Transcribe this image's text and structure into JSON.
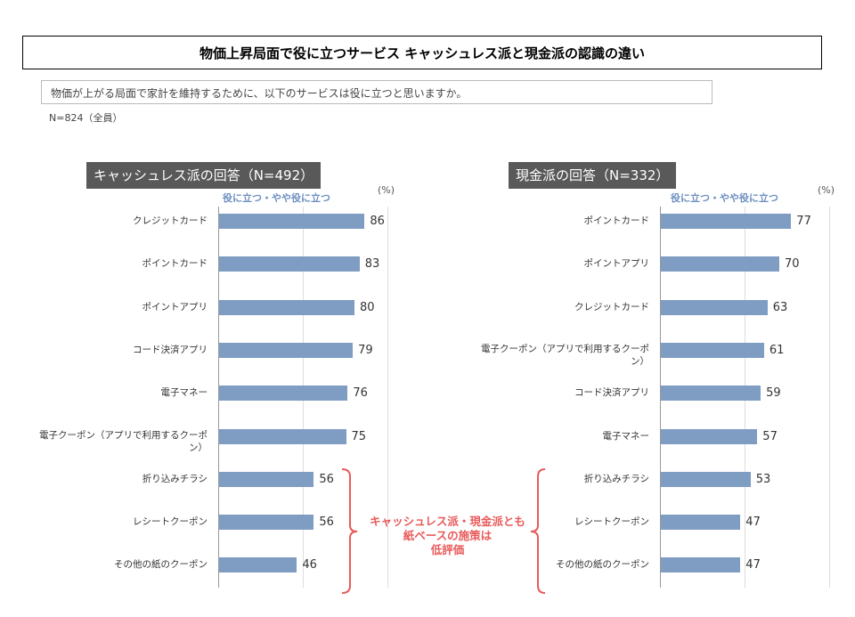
{
  "title": "物価上昇局面で役に立つサービス キャッシュレス派と現金派の認識の違い",
  "question": "物価が上がる局面で家計を維持するために、以下のサービスは役に立つと思いますか。",
  "sample": "N=824（全員）",
  "annotation": [
    "キャッシュレス派・現金派とも",
    "紙ベースの施策は",
    "低評価"
  ],
  "colors": {
    "bar": "#7f9dc3",
    "accent": "#e85a5a"
  },
  "chart_data": [
    {
      "type": "bar",
      "title": "キャッシュレス派の回答（N=492）",
      "series_label": "役に立つ・やや役に立つ",
      "unit": "(%)",
      "xlim": [
        0,
        100
      ],
      "categories": [
        "クレジットカード",
        "ポイントカード",
        "ポイントアプリ",
        "コード決済アプリ",
        "電子マネー",
        "電子クーポン（アプリで利用するクーポン）",
        "折り込みチラシ",
        "レシートクーポン",
        "その他の紙のクーポン"
      ],
      "values": [
        86,
        83,
        80,
        79,
        76,
        75,
        56,
        56,
        46
      ]
    },
    {
      "type": "bar",
      "title": "現金派の回答（N=332）",
      "series_label": "役に立つ・やや役に立つ",
      "unit": "(%)",
      "xlim": [
        0,
        100
      ],
      "categories": [
        "ポイントカード",
        "ポイントアプリ",
        "クレジットカード",
        "電子クーポン（アプリで利用するクーポン）",
        "コード決済アプリ",
        "電子マネー",
        "折り込みチラシ",
        "レシートクーポン",
        "その他の紙のクーポン"
      ],
      "values": [
        77,
        70,
        63,
        61,
        59,
        57,
        53,
        47,
        47
      ]
    }
  ]
}
